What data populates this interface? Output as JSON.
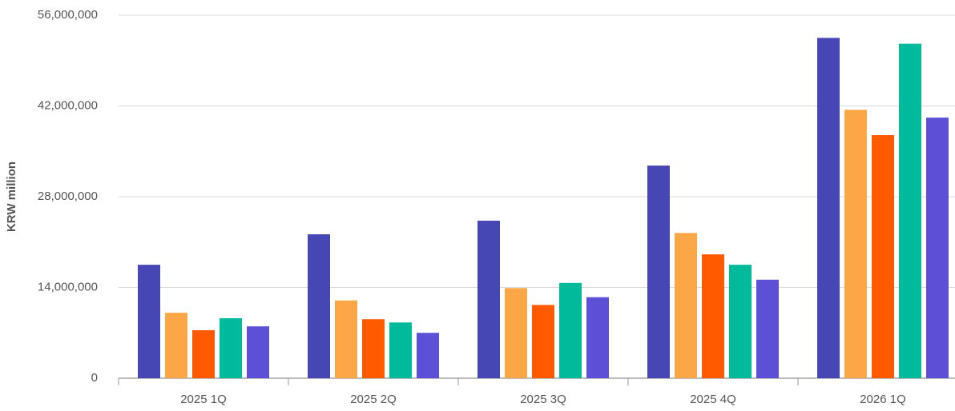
{
  "chart_data": {
    "type": "bar",
    "y_label": "KRW million",
    "categories": [
      "2025 1Q",
      "2025 2Q",
      "2025 3Q",
      "2025 4Q",
      "2026 1Q"
    ],
    "series": [
      {
        "color": "#4646b4",
        "values": [
          17500000,
          22200000,
          24300000,
          32800000,
          52500000
        ]
      },
      {
        "color": "#fba747",
        "values": [
          10100000,
          12000000,
          13900000,
          22400000,
          41400000
        ]
      },
      {
        "color": "#ff5a00",
        "values": [
          7400000,
          9100000,
          11300000,
          19100000,
          37500000
        ]
      },
      {
        "color": "#00bb9b",
        "values": [
          9250000,
          8600000,
          14700000,
          17500000,
          51600000
        ]
      },
      {
        "color": "#5b50d6",
        "values": [
          8000000,
          7000000,
          12500000,
          15200000,
          40200000
        ]
      }
    ],
    "ylim": [
      0,
      56000000
    ],
    "yticks": [
      0,
      {
        "value": 14000000,
        "label": "14,000,000"
      },
      {
        "value": 28000000,
        "label": "28,000,000"
      },
      {
        "value": 42000000,
        "label": "42,000,000"
      },
      {
        "value": 56000000,
        "label": "56,000,000"
      }
    ],
    "grid": true
  }
}
